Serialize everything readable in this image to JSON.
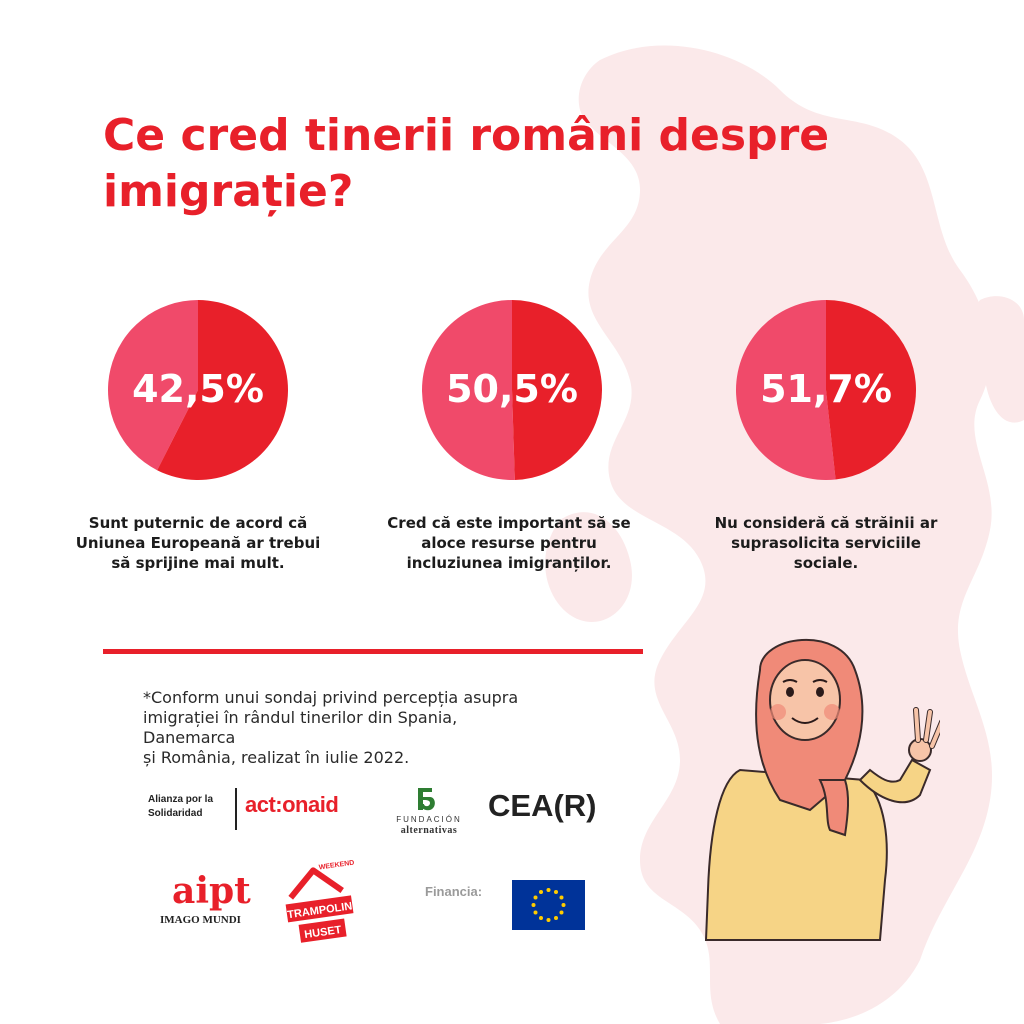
{
  "title_line1": "Ce cred tinerii români despre",
  "title_line2": "imigrație?",
  "chart_data": [
    {
      "type": "pie",
      "value_label": "42,5%",
      "values": [
        42.5,
        57.5
      ],
      "colors": [
        "#f04a6a",
        "#e8202a"
      ],
      "caption": [
        "Sunt puternic de acord că",
        "Uniunea Europeană ar trebui",
        "să sprijine mai mult."
      ]
    },
    {
      "type": "pie",
      "value_label": "50,5%",
      "values": [
        50.5,
        49.5
      ],
      "colors": [
        "#f04a6a",
        "#e8202a"
      ],
      "caption": [
        "Cred că este important să se",
        "aloce resurse pentru",
        "incluziunea imigranților."
      ]
    },
    {
      "type": "pie",
      "value_label": "51,7%",
      "values": [
        51.7,
        48.3
      ],
      "colors": [
        "#f04a6a",
        "#e8202a"
      ],
      "caption": [
        "Nu consideră că străinii ar",
        "suprasolicita serviciile",
        "sociale."
      ]
    }
  ],
  "footnote": [
    "*Conform unui sondaj privind percepția asupra",
    "imigrației în rândul tinerilor din Spania, Danemarca",
    "și România, realizat în iulie 2022."
  ],
  "logos": {
    "alianza": [
      "Alianza por la",
      "Solidaridad"
    ],
    "actionaid": "act:onaid",
    "fundacion_top": "FUNDACIÓN",
    "fundacion_bottom": "alternativas",
    "ceari": "CEA(R)",
    "aipt_mark": "aipt",
    "aipt_text": "IMAGO MUNDI",
    "trampolin_top": "WEEKEND",
    "trampolin_mid": "TRAMPOLIN",
    "trampolin_bottom": "HUSET",
    "financia": "Financia:"
  },
  "colors": {
    "accent": "#e8202a",
    "pink": "#f04a6a",
    "map": "#fbe9ea",
    "eu_blue": "#003399",
    "eu_star": "#ffcc00"
  }
}
